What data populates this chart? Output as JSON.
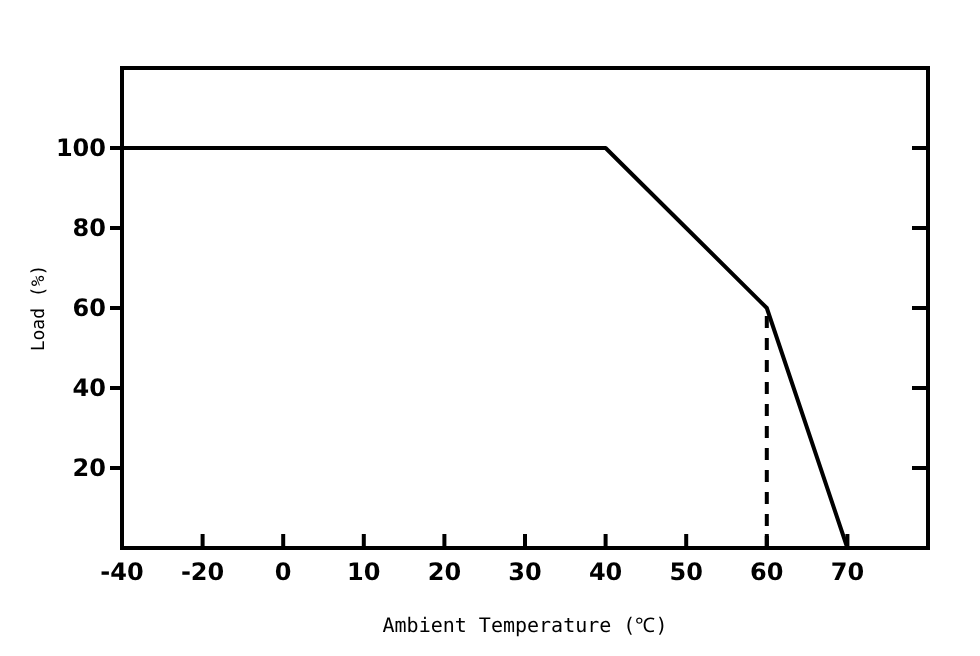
{
  "chart_data": {
    "type": "line",
    "xlabel": "Ambient Temperature (℃)",
    "ylabel": "Load (%)",
    "categories": [
      "-40",
      "-20",
      "0",
      "10",
      "20",
      "30",
      "40",
      "50",
      "60",
      "70"
    ],
    "ylim": [
      0,
      120
    ],
    "yticks": [
      20,
      40,
      60,
      80,
      100
    ],
    "grid": false,
    "marker": "none",
    "series": [
      {
        "color": "#000000",
        "line_style": "solid",
        "values": [
          100,
          100,
          100,
          100,
          100,
          100,
          100,
          80,
          60,
          0
        ]
      },
      {
        "color": "#000000",
        "line_style": "dashed",
        "x": [
          "60",
          "60"
        ],
        "values": [
          0,
          60
        ]
      }
    ]
  }
}
